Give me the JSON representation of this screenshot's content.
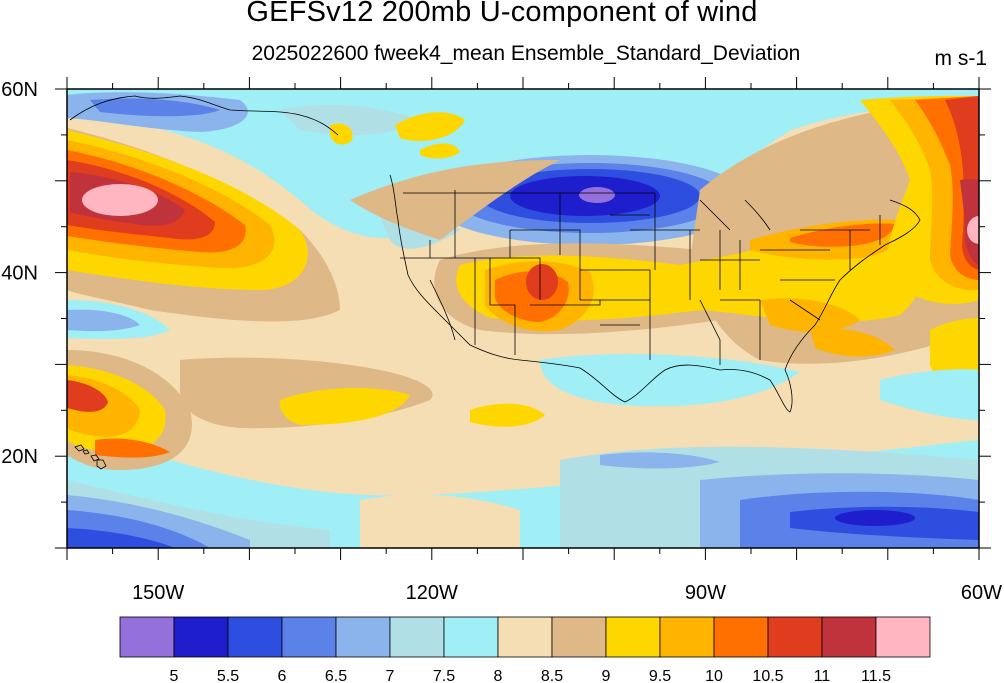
{
  "title": "GEFSv12 200mb U-component of wind",
  "subtitle": "2025022600 fweek4_mean Ensemble_Standard_Deviation",
  "units": "m s-1",
  "map": {
    "lon_range": [
      -160,
      -60
    ],
    "lat_range": [
      10,
      60
    ],
    "x_ticks": [
      {
        "lon": -150,
        "label": "150W"
      },
      {
        "lon": -120,
        "label": "120W"
      },
      {
        "lon": -90,
        "label": "90W"
      },
      {
        "lon": -60,
        "label": "60W"
      }
    ],
    "y_ticks": [
      {
        "lat": 60,
        "label": "60N"
      },
      {
        "lat": 40,
        "label": "40N"
      },
      {
        "lat": 20,
        "label": "20N"
      }
    ]
  },
  "colorbar": {
    "levels": [
      "5",
      "5.5",
      "6",
      "6.5",
      "7",
      "7.5",
      "8",
      "8.5",
      "9",
      "9.5",
      "10",
      "10.5",
      "11",
      "11.5"
    ],
    "colors": [
      "#9370db",
      "#1e1ecc",
      "#2e4ee0",
      "#5a82e8",
      "#8cb4ec",
      "#b0e0e6",
      "#a0eef6",
      "#f5deb3",
      "#deb887",
      "#ffd700",
      "#ffb400",
      "#ff7000",
      "#e03c1e",
      "#c0323c",
      "#ffb6c1"
    ]
  }
}
